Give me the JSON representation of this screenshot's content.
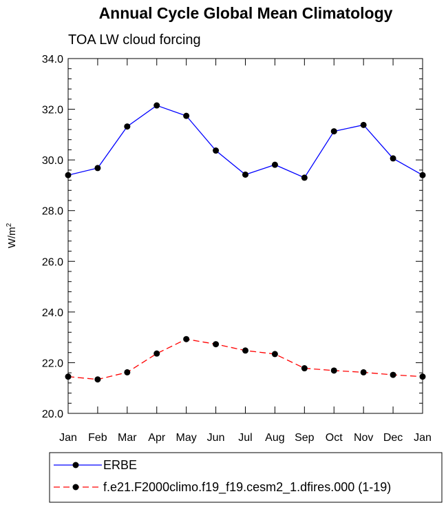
{
  "chart_data": {
    "type": "line",
    "title": "Annual Cycle Global Mean Climatology",
    "subtitle": "TOA LW cloud forcing",
    "ylabel_base": "W/m",
    "ylabel_sup": "2",
    "xlabel": "",
    "categories": [
      "Jan",
      "Feb",
      "Mar",
      "Apr",
      "May",
      "Jun",
      "Jul",
      "Aug",
      "Sep",
      "Oct",
      "Nov",
      "Dec",
      "Jan"
    ],
    "ylim": [
      20.0,
      34.0
    ],
    "yticks": [
      "20.0",
      "22.0",
      "24.0",
      "26.0",
      "28.0",
      "30.0",
      "32.0",
      "34.0"
    ],
    "ytick_values": [
      20,
      22,
      24,
      26,
      28,
      30,
      32,
      34
    ],
    "series": [
      {
        "name": "ERBE",
        "color": "#0000ff",
        "dash": "solid",
        "values": [
          29.4,
          29.68,
          31.32,
          32.15,
          31.74,
          30.37,
          29.42,
          29.81,
          29.3,
          31.13,
          31.38,
          30.06,
          29.4
        ]
      },
      {
        "name": "f.e21.F2000climo.f19_f19.cesm2_1.dfires.000 (1-19)",
        "color": "#ff0000",
        "dash": "dashed",
        "values": [
          21.45,
          21.34,
          21.62,
          22.36,
          22.93,
          22.73,
          22.48,
          22.34,
          21.78,
          21.69,
          21.62,
          21.52,
          21.45
        ]
      }
    ],
    "grid": false,
    "legend_position": "bottom"
  }
}
